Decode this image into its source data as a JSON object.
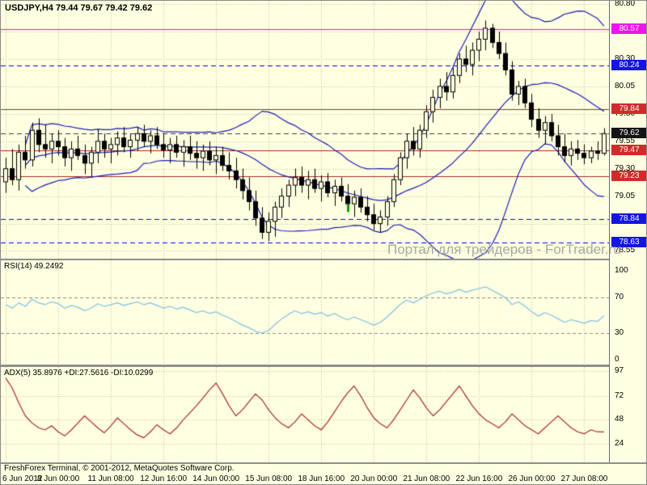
{
  "main_panel": {
    "title": "USDJPY,H4  79.44 79.67 79.42 79.62",
    "watermark": "Портал для трейдеров - ForTrader.ru"
  },
  "footer": {
    "copyright": "FreshForex Terminal, © 2001-2012, MetaQuotes Software Corp."
  },
  "chart_data": {
    "type": "candlestick",
    "symbol": "USDJPY",
    "timeframe": "H4",
    "current_ohlc": {
      "open": 79.44,
      "high": 79.67,
      "low": 79.42,
      "close": 79.62
    },
    "grid_color": "#BDBD93",
    "candle_bull": "#FFFFE1",
    "candle_bear": "#000000",
    "wick_color": "#000000",
    "price_axis": {
      "max": 80.83,
      "min": 78.48,
      "grid_start": 78.55,
      "grid_step": 0.25,
      "plain_labels": [
        {
          "price": 80.8,
          "label": "80.80"
        },
        {
          "price": 80.3,
          "label": "80.30"
        },
        {
          "price": 80.05,
          "label": "80.05"
        },
        {
          "price": 79.8,
          "label": "79.80"
        },
        {
          "price": 79.55,
          "label": "79.55"
        },
        {
          "price": 79.3,
          "label": "79.30"
        },
        {
          "price": 79.05,
          "label": "79.05"
        },
        {
          "price": 78.55,
          "label": "78.55"
        }
      ]
    },
    "levels": [
      {
        "price": 80.57,
        "label": "80.57",
        "line_color": "#FF00FF",
        "badge_color": "#EE14EE",
        "style": "solid"
      },
      {
        "price": 80.24,
        "label": "80.24",
        "line_color": "#0000E6",
        "badge_color": "#1414E6",
        "style": "dash"
      },
      {
        "price": 79.84,
        "label": "79.84",
        "line_color": "#A52A2A",
        "badge_color": "#D22A2A",
        "style": "solid"
      },
      {
        "price": 79.62,
        "label": "79.62",
        "line_color": "#3C3C3C",
        "badge_color": "#141414",
        "style": "dash"
      },
      {
        "price": 79.47,
        "label": "79.47",
        "line_color": "#A52A2A",
        "badge_color": "#D22A2A",
        "style": "solid"
      },
      {
        "price": 79.23,
        "label": "79.23",
        "line_color": "#A52A2A",
        "badge_color": "#D22A2A",
        "style": "solid"
      },
      {
        "price": 78.84,
        "label": "78.84",
        "line_color": "#0000E6",
        "badge_color": "#1414E6",
        "style": "dash"
      },
      {
        "price": 78.63,
        "label": "78.63",
        "line_color": "#0000E6",
        "badge_color": "#1414E6",
        "style": "dash"
      }
    ],
    "bollinger": {
      "period": 20,
      "deviation": 2,
      "color": "#1C1CB4"
    },
    "marker": {
      "index": 52,
      "price": 78.98,
      "color": "#00A000"
    },
    "x_ticks": [
      {
        "index": 0,
        "label": "6 Jun 2012"
      },
      {
        "index": 8,
        "label": "8 Jun 00:00"
      },
      {
        "index": 16,
        "label": "11 Jun 08:00"
      },
      {
        "index": 24,
        "label": "12 Jun 16:00"
      },
      {
        "index": 32,
        "label": "14 Jun 00:00"
      },
      {
        "index": 40,
        "label": "15 Jun 08:00"
      },
      {
        "index": 48,
        "label": "18 Jun 16:00"
      },
      {
        "index": 56,
        "label": "20 Jun 00:00"
      },
      {
        "index": 64,
        "label": "21 Jun 08:00"
      },
      {
        "index": 72,
        "label": "22 Jun 16:00"
      },
      {
        "index": 80,
        "label": "26 Jun 00:00"
      },
      {
        "index": 88,
        "label": "27 Jun 08:00"
      }
    ],
    "candles": [
      [
        79.18,
        79.4,
        79.08,
        79.3
      ],
      [
        79.3,
        79.48,
        79.15,
        79.2
      ],
      [
        79.2,
        79.52,
        79.1,
        79.45
      ],
      [
        79.45,
        79.6,
        79.3,
        79.38
      ],
      [
        79.38,
        79.72,
        79.32,
        79.65
      ],
      [
        79.65,
        79.76,
        79.45,
        79.52
      ],
      [
        79.52,
        79.7,
        79.4,
        79.48
      ],
      [
        79.48,
        79.62,
        79.35,
        79.55
      ],
      [
        79.55,
        79.65,
        79.42,
        79.5
      ],
      [
        79.5,
        79.58,
        79.32,
        79.4
      ],
      [
        79.4,
        79.55,
        79.28,
        79.48
      ],
      [
        79.48,
        79.6,
        79.38,
        79.42
      ],
      [
        79.42,
        79.52,
        79.25,
        79.35
      ],
      [
        79.35,
        79.5,
        79.22,
        79.45
      ],
      [
        79.45,
        79.66,
        79.35,
        79.55
      ],
      [
        79.55,
        79.62,
        79.4,
        79.48
      ],
      [
        79.48,
        79.58,
        79.35,
        79.52
      ],
      [
        79.52,
        79.64,
        79.42,
        79.58
      ],
      [
        79.58,
        79.68,
        79.45,
        79.5
      ],
      [
        79.5,
        79.62,
        79.4,
        79.56
      ],
      [
        79.56,
        79.68,
        79.46,
        79.62
      ],
      [
        79.62,
        79.7,
        79.5,
        79.55
      ],
      [
        79.55,
        79.65,
        79.44,
        79.6
      ],
      [
        79.6,
        79.68,
        79.48,
        79.52
      ],
      [
        79.52,
        79.62,
        79.4,
        79.47
      ],
      [
        79.47,
        79.58,
        79.35,
        79.52
      ],
      [
        79.52,
        79.6,
        79.4,
        79.45
      ],
      [
        79.45,
        79.56,
        79.32,
        79.5
      ],
      [
        79.5,
        79.6,
        79.38,
        79.44
      ],
      [
        79.44,
        79.55,
        79.3,
        79.4
      ],
      [
        79.4,
        79.52,
        79.28,
        79.46
      ],
      [
        79.46,
        79.55,
        79.33,
        79.38
      ],
      [
        79.38,
        79.5,
        79.25,
        79.42
      ],
      [
        79.42,
        79.5,
        79.28,
        79.33
      ],
      [
        79.33,
        79.45,
        79.2,
        79.28
      ],
      [
        79.28,
        79.4,
        79.12,
        79.2
      ],
      [
        79.2,
        79.3,
        79.02,
        79.1
      ],
      [
        79.1,
        79.22,
        78.92,
        79.0
      ],
      [
        79.0,
        79.1,
        78.78,
        78.85
      ],
      [
        78.85,
        78.95,
        78.66,
        78.72
      ],
      [
        78.72,
        78.9,
        78.64,
        78.82
      ],
      [
        78.82,
        79.0,
        78.68,
        78.95
      ],
      [
        78.95,
        79.12,
        78.85,
        79.05
      ],
      [
        79.05,
        79.2,
        78.95,
        79.15
      ],
      [
        79.15,
        79.3,
        79.05,
        79.22
      ],
      [
        79.22,
        79.32,
        79.08,
        79.15
      ],
      [
        79.15,
        79.28,
        79.02,
        79.2
      ],
      [
        79.2,
        79.3,
        79.08,
        79.12
      ],
      [
        79.12,
        79.24,
        79.0,
        79.18
      ],
      [
        79.18,
        79.26,
        79.04,
        79.08
      ],
      [
        79.08,
        79.2,
        78.96,
        79.14
      ],
      [
        79.14,
        79.22,
        79.0,
        79.05
      ],
      [
        79.05,
        79.16,
        78.92,
        78.98
      ],
      [
        78.98,
        79.1,
        78.86,
        79.04
      ],
      [
        79.04,
        79.12,
        78.9,
        78.95
      ],
      [
        78.95,
        79.05,
        78.82,
        78.88
      ],
      [
        78.88,
        78.98,
        78.74,
        78.8
      ],
      [
        78.8,
        78.92,
        78.72,
        78.86
      ],
      [
        78.86,
        79.05,
        78.78,
        79.0
      ],
      [
        79.0,
        79.25,
        78.95,
        79.2
      ],
      [
        79.2,
        79.45,
        79.15,
        79.4
      ],
      [
        79.4,
        79.62,
        79.3,
        79.55
      ],
      [
        79.55,
        79.68,
        79.42,
        79.48
      ],
      [
        79.48,
        79.7,
        79.4,
        79.65
      ],
      [
        79.65,
        79.88,
        79.58,
        79.82
      ],
      [
        79.82,
        80.02,
        79.72,
        79.95
      ],
      [
        79.95,
        80.12,
        79.85,
        80.05
      ],
      [
        80.05,
        80.18,
        79.92,
        80.0
      ],
      [
        80.0,
        80.22,
        79.94,
        80.15
      ],
      [
        80.15,
        80.35,
        80.08,
        80.3
      ],
      [
        80.3,
        80.42,
        80.18,
        80.25
      ],
      [
        80.25,
        80.45,
        80.15,
        80.38
      ],
      [
        80.38,
        80.55,
        80.28,
        80.48
      ],
      [
        80.48,
        80.65,
        80.38,
        80.58
      ],
      [
        80.58,
        80.62,
        80.4,
        80.45
      ],
      [
        80.45,
        80.55,
        80.3,
        80.35
      ],
      [
        80.35,
        80.45,
        80.15,
        80.2
      ],
      [
        80.2,
        80.28,
        79.92,
        79.98
      ],
      [
        79.98,
        80.1,
        79.88,
        80.05
      ],
      [
        80.05,
        80.12,
        79.85,
        79.9
      ],
      [
        79.9,
        79.98,
        79.68,
        79.75
      ],
      [
        79.75,
        79.85,
        79.58,
        79.65
      ],
      [
        79.65,
        79.78,
        79.52,
        79.72
      ],
      [
        79.72,
        79.8,
        79.55,
        79.6
      ],
      [
        79.6,
        79.7,
        79.42,
        79.5
      ],
      [
        79.5,
        79.62,
        79.36,
        79.42
      ],
      [
        79.42,
        79.55,
        79.33,
        79.48
      ],
      [
        79.48,
        79.56,
        79.38,
        79.44
      ],
      [
        79.44,
        79.52,
        79.34,
        79.4
      ],
      [
        79.4,
        79.5,
        79.35,
        79.46
      ],
      [
        79.46,
        79.55,
        79.38,
        79.44
      ],
      [
        79.44,
        79.67,
        79.42,
        79.62
      ]
    ],
    "rsi": {
      "label": "RSI(14) 49.2492",
      "current_value": 49.2492,
      "color": "#7EC0E8",
      "guides": [
        70,
        30
      ],
      "scale": [
        {
          "value": 100,
          "label": "100"
        },
        {
          "value": 70,
          "label": "70"
        },
        {
          "value": 30,
          "label": "30"
        },
        {
          "value": 0,
          "label": "0"
        }
      ],
      "values": [
        62,
        58,
        64,
        60,
        68,
        64,
        62,
        65,
        63,
        58,
        61,
        59,
        55,
        58,
        63,
        60,
        62,
        64,
        61,
        63,
        65,
        62,
        64,
        61,
        58,
        60,
        57,
        59,
        56,
        53,
        55,
        52,
        54,
        50,
        47,
        43,
        39,
        36,
        32,
        30,
        33,
        40,
        46,
        51,
        55,
        52,
        54,
        51,
        53,
        49,
        52,
        48,
        45,
        48,
        45,
        42,
        39,
        42,
        48,
        55,
        62,
        67,
        64,
        68,
        72,
        75,
        77,
        74,
        76,
        79,
        76,
        78,
        80,
        82,
        78,
        74,
        70,
        62,
        65,
        60,
        54,
        49,
        53,
        50,
        46,
        42,
        45,
        43,
        41,
        44,
        43,
        49.25
      ]
    },
    "adx": {
      "label": "ADX(5) 35.8976 +DI:27.5616 -DI:10.0299",
      "current_value": 35.8976,
      "plus_di": 27.5616,
      "minus_di": 10.0299,
      "color": "#A52A2A",
      "scale": [
        {
          "value": 97,
          "label": "97"
        },
        {
          "value": 72,
          "label": "72"
        },
        {
          "value": 48,
          "label": "48"
        },
        {
          "value": 24,
          "label": "24"
        }
      ],
      "values": [
        90,
        80,
        65,
        52,
        45,
        40,
        38,
        42,
        36,
        32,
        38,
        45,
        52,
        46,
        40,
        35,
        42,
        50,
        44,
        38,
        33,
        30,
        36,
        43,
        38,
        34,
        40,
        48,
        55,
        62,
        70,
        78,
        85,
        74,
        62,
        52,
        58,
        66,
        74,
        68,
        58,
        50,
        44,
        40,
        46,
        54,
        48,
        42,
        38,
        46,
        56,
        66,
        75,
        82,
        72,
        60,
        50,
        44,
        40,
        48,
        58,
        68,
        78,
        70,
        60,
        52,
        58,
        66,
        74,
        82,
        72,
        62,
        54,
        48,
        44,
        40,
        46,
        54,
        48,
        42,
        38,
        34,
        40,
        46,
        52,
        46,
        40,
        36,
        34,
        38,
        36,
        35.9
      ]
    }
  }
}
